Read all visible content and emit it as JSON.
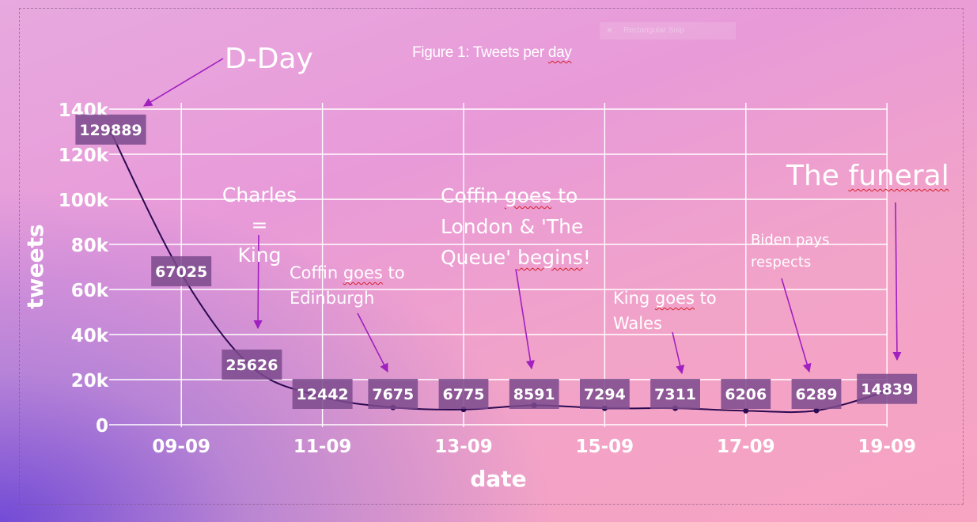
{
  "figure_title": "Figure 1: Tweets per day",
  "snip_label": "Rectangular Snip",
  "chart_data": {
    "type": "line",
    "xlabel": "date",
    "ylabel": "tweets",
    "ylim": [
      0,
      140000
    ],
    "yticks": [
      0,
      20000,
      40000,
      60000,
      80000,
      100000,
      120000,
      140000
    ],
    "ytick_labels": [
      "0",
      "20k",
      "40k",
      "60k",
      "80k",
      "100k",
      "120k",
      "140k"
    ],
    "xtick_labels": [
      "09-09",
      "11-09",
      "13-09",
      "15-09",
      "17-09",
      "19-09"
    ],
    "x": [
      "08-09",
      "09-09",
      "10-09",
      "11-09",
      "12-09",
      "13-09",
      "14-09",
      "15-09",
      "16-09",
      "17-09",
      "18-09",
      "19-09"
    ],
    "values": [
      129889,
      67025,
      25626,
      12442,
      7675,
      6775,
      8591,
      7294,
      7311,
      6206,
      6289,
      14839
    ],
    "grid": true,
    "line_color": "#2b0a52",
    "label_bg": "#7b4a8c"
  },
  "annotations": [
    {
      "text": "D-Day",
      "points_to": "08-09"
    },
    {
      "line1": "Charles =",
      "line2": "King",
      "points_to": "10-09"
    },
    {
      "line1a": "Coffin ",
      "line1b": "goes",
      "line1c": " to",
      "line2": "Edinburgh",
      "points_to": "12-09"
    },
    {
      "line1a": "Coffin ",
      "line1b": "goes",
      "line1c": " to",
      "line2": "London & 'The",
      "line3a": "Queue' ",
      "line3b": "begins",
      "line3c": "!",
      "points_to": "14-09"
    },
    {
      "line1a": "King ",
      "line1b": "goes",
      "line1c": " to",
      "line2": "Wales",
      "points_to": "16-09"
    },
    {
      "line1": "Biden pays",
      "line2": "respects",
      "points_to": "18-09"
    },
    {
      "line1a": "The ",
      "line1b": "funeral",
      "points_to": "19-09"
    }
  ],
  "colors": {
    "annotation_arrow": "#a020c0",
    "grid": "#ffffff"
  }
}
